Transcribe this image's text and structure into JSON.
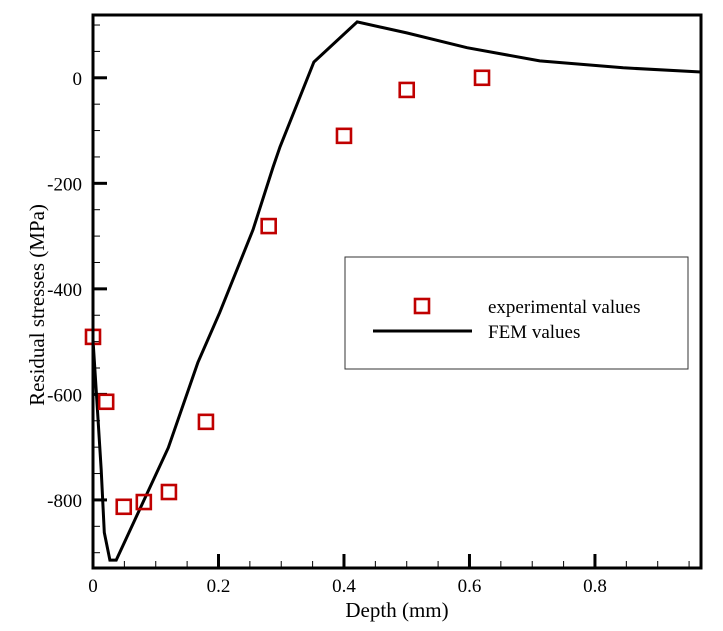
{
  "chart_data": {
    "type": "scatter",
    "title": "",
    "xlabel": "Depth (mm)",
    "ylabel": "Residual stresses (MPa)",
    "xlim": [
      0,
      0.969
    ],
    "ylim": [
      -929,
      119
    ],
    "grid": false,
    "x_ticks": [
      {
        "value": 0,
        "label": "0"
      },
      {
        "value": 0.2,
        "label": "0.2"
      },
      {
        "value": 0.4,
        "label": "0.4"
      },
      {
        "value": 0.6,
        "label": "0.6"
      },
      {
        "value": 0.8,
        "label": "0.8"
      }
    ],
    "x_minor_step": 0.05,
    "y_ticks": [
      {
        "value": 0,
        "label": "0"
      },
      {
        "value": -200,
        "label": "-200"
      },
      {
        "value": -400,
        "label": "-400"
      },
      {
        "value": -600,
        "label": "-600"
      },
      {
        "value": -800,
        "label": "-800"
      }
    ],
    "y_minor_step": 50,
    "legend_position": "center-right",
    "series": [
      {
        "name": "experimental values",
        "type": "scatter",
        "marker": "open-square",
        "color": "#c00000",
        "x": [
          0.0,
          0.021,
          0.049,
          0.081,
          0.121,
          0.18,
          0.28,
          0.4,
          0.5,
          0.62
        ],
        "y": [
          -491,
          -614,
          -813,
          -804,
          -785,
          -652,
          -281,
          -110,
          -23,
          0
        ]
      },
      {
        "name": "FEM values",
        "type": "line",
        "color": "#000000",
        "x": [
          0.0,
          0.006,
          0.013,
          0.018,
          0.027,
          0.037,
          0.12,
          0.167,
          0.202,
          0.255,
          0.287,
          0.298,
          0.352,
          0.421,
          0.5,
          0.596,
          0.712,
          0.845,
          0.969
        ],
        "y": [
          -497,
          -610,
          -743,
          -862,
          -914,
          -914,
          -701,
          -540,
          -445,
          -288,
          -169,
          -131,
          30,
          106,
          85,
          57,
          32,
          19,
          11
        ]
      }
    ]
  }
}
